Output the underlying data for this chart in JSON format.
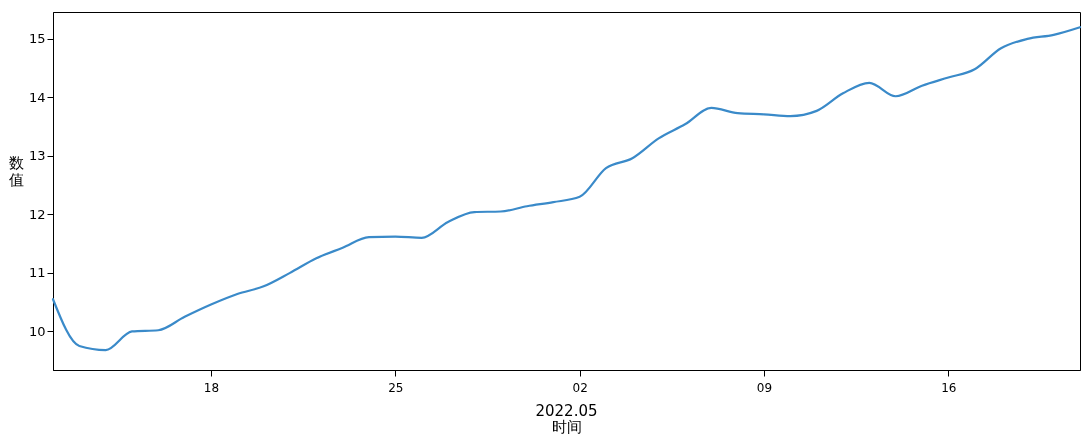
{
  "chart_data": {
    "type": "line",
    "xlabel": "时间",
    "ylabel": "数值",
    "annotations": [
      "2022.05"
    ],
    "x": [
      "2022-04-12",
      "2022-04-13",
      "2022-04-14",
      "2022-04-15",
      "2022-04-16",
      "2022-04-17",
      "2022-04-18",
      "2022-04-19",
      "2022-04-20",
      "2022-04-21",
      "2022-04-22",
      "2022-04-23",
      "2022-04-24",
      "2022-04-25",
      "2022-04-26",
      "2022-04-27",
      "2022-04-28",
      "2022-04-29",
      "2022-04-30",
      "2022-05-01",
      "2022-05-02",
      "2022-05-03",
      "2022-05-04",
      "2022-05-05",
      "2022-05-06",
      "2022-05-07",
      "2022-05-08",
      "2022-05-09",
      "2022-05-10",
      "2022-05-11",
      "2022-05-12",
      "2022-05-13",
      "2022-05-14",
      "2022-05-15",
      "2022-05-16",
      "2022-05-17",
      "2022-05-18",
      "2022-05-19",
      "2022-05-20",
      "2022-05-21"
    ],
    "series": [
      {
        "color": "#3a8ac9",
        "values": [
          10.55,
          9.75,
          9.68,
          10.0,
          10.02,
          10.25,
          10.46,
          10.64,
          10.77,
          11.0,
          11.25,
          11.43,
          11.61,
          11.62,
          11.6,
          11.87,
          12.04,
          12.05,
          12.14,
          12.21,
          12.3,
          12.79,
          12.96,
          13.3,
          13.54,
          13.82,
          13.73,
          13.71,
          13.68,
          13.77,
          14.07,
          14.25,
          14.02,
          14.2,
          14.34,
          14.48,
          14.84,
          15.0,
          15.07,
          15.2
        ]
      }
    ],
    "xlim": [
      "2022-04-12",
      "2022-05-21"
    ],
    "xticks": [
      {
        "value": "2022-04-18",
        "label": "18"
      },
      {
        "value": "2022-04-25",
        "label": "25"
      },
      {
        "value": "2022-05-02",
        "label": "02"
      },
      {
        "value": "2022-05-09",
        "label": "09"
      },
      {
        "value": "2022-05-16",
        "label": "16"
      }
    ],
    "ylim": [
      9.34,
      15.46
    ],
    "yticks": [
      10,
      11,
      12,
      13,
      14,
      15
    ],
    "grid": false,
    "marker": "none",
    "line_style": "solid"
  }
}
